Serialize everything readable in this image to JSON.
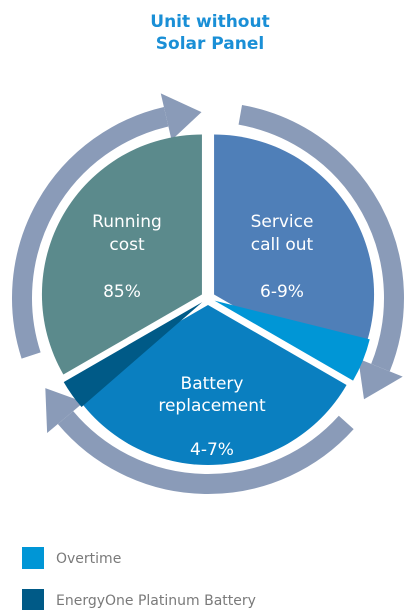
{
  "header": {
    "title": [
      "Unit without",
      "Solar Panel"
    ]
  },
  "segments": [
    {
      "label": [
        "Running",
        "cost"
      ],
      "value": "85%"
    },
    {
      "label": [
        "Service",
        "call out"
      ],
      "value": "6-9%"
    },
    {
      "label": [
        "Battery",
        "replacement"
      ],
      "value": "4-7%"
    }
  ],
  "legend": [
    "Overtime",
    "EnergyOne Platinum Battery"
  ]
}
